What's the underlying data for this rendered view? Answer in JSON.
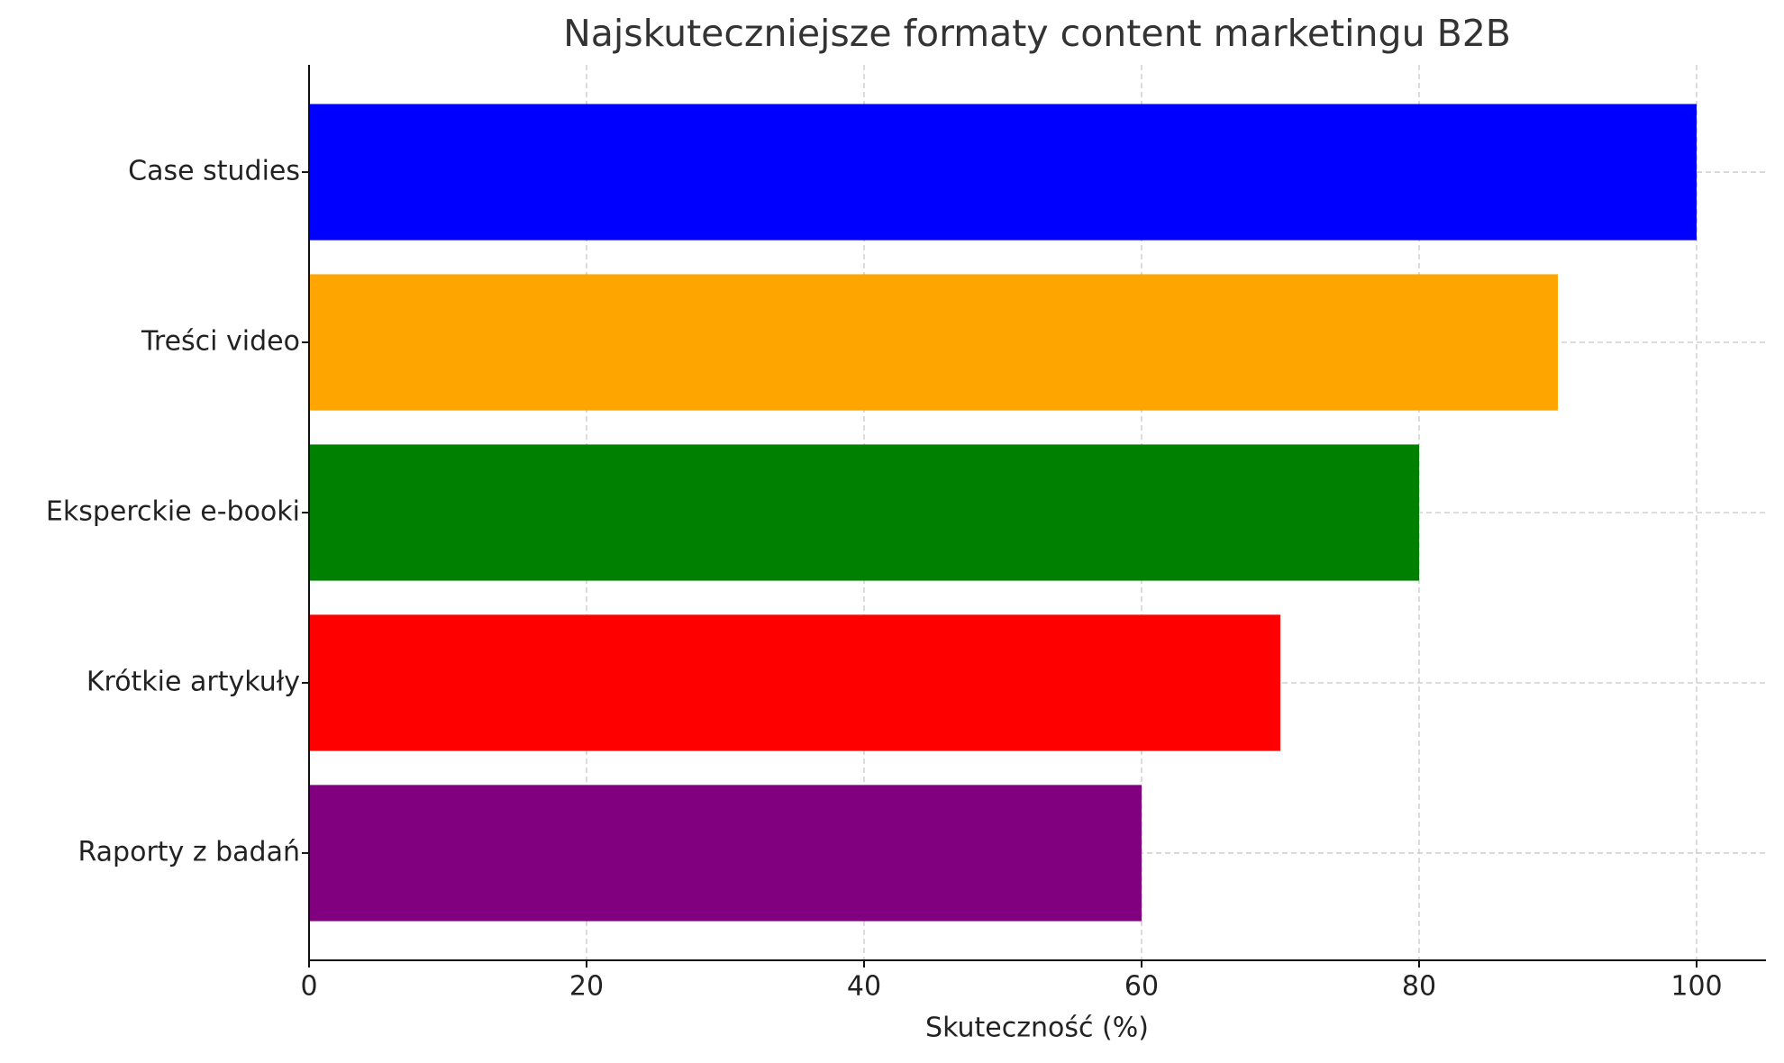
{
  "chart_data": {
    "type": "barh",
    "title": "Najskuteczniejsze formaty content marketingu B2B",
    "x_label": "Skuteczność (%)",
    "categories": [
      "Case studies",
      "Treści video",
      "Eksperckie e-booki",
      "Krótkie artykuły",
      "Raporty z badań"
    ],
    "values": [
      100,
      90,
      80,
      70,
      60
    ],
    "colors": [
      "#0000ff",
      "#ffa500",
      "#008000",
      "#ff0000",
      "#800080"
    ],
    "xlim": [
      0,
      105
    ],
    "xticks": [
      0,
      20,
      40,
      60,
      80,
      100
    ],
    "grid": true
  }
}
